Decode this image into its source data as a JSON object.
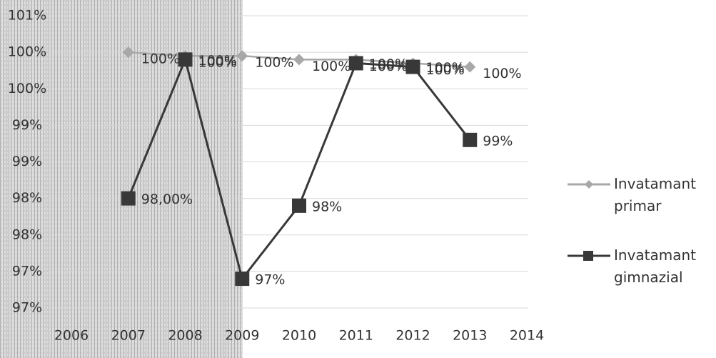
{
  "chart_data": {
    "type": "line",
    "categories": [
      "2006",
      "2007",
      "2008",
      "2009",
      "2010",
      "2011",
      "2012",
      "2013",
      "2014"
    ],
    "series": [
      {
        "name": "Invatamant primar",
        "color": "#a8a8a8",
        "marker": "diamond",
        "values": [
          null,
          100,
          99.95,
          99.95,
          99.9,
          99.9,
          99.85,
          99.8,
          null
        ],
        "value_labels": [
          null,
          "100%",
          "100%",
          "100%",
          "100%",
          "100%",
          "100%",
          "100%",
          null
        ]
      },
      {
        "name": "Invatamant gimnazial",
        "color": "#383838",
        "marker": "square",
        "values": [
          null,
          98,
          99.9,
          96.9,
          97.9,
          99.85,
          99.8,
          98.8,
          null
        ],
        "value_labels": [
          null,
          "98,00%",
          "100%",
          "97%",
          "98%",
          "100%",
          "100%",
          "99%",
          null
        ]
      }
    ],
    "ylim": [
      96.5,
      100.5
    ],
    "yticks": [
      {
        "value": 100.5,
        "label": "101%"
      },
      {
        "value": 100,
        "label": "100%"
      },
      {
        "value": 99.5,
        "label": "100%"
      },
      {
        "value": 99,
        "label": "99%"
      },
      {
        "value": 98.5,
        "label": "99%"
      },
      {
        "value": 98,
        "label": "98%"
      },
      {
        "value": 97.5,
        "label": "98%"
      },
      {
        "value": 97,
        "label": "97%"
      },
      {
        "value": 96.5,
        "label": "97%"
      }
    ],
    "grid": true
  }
}
